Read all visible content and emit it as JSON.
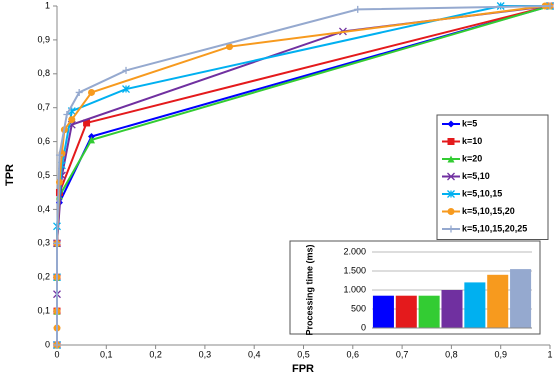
{
  "chart_data": [
    {
      "type": "line",
      "xlabel": "FPR",
      "ylabel": "TPR",
      "xlim": [
        0,
        1
      ],
      "ylim": [
        0,
        1
      ],
      "xticks": [
        0,
        {
          "value": 0.1,
          "label": "0,1"
        },
        {
          "value": 0.2,
          "label": "0,2"
        },
        {
          "value": 0.3,
          "label": "0,3"
        },
        {
          "value": 0.4,
          "label": "0,4"
        },
        {
          "value": 0.5,
          "label": "0,5"
        },
        {
          "value": 0.6,
          "label": "0,6"
        },
        {
          "value": 0.7,
          "label": "0,7"
        },
        {
          "value": 0.8,
          "label": "0,8"
        },
        {
          "value": 0.9,
          "label": "0,9"
        },
        1
      ],
      "yticks": [
        0,
        {
          "value": 0.1,
          "label": "0,1"
        },
        {
          "value": 0.2,
          "label": "0,2"
        },
        {
          "value": 0.3,
          "label": "0,3"
        },
        {
          "value": 0.4,
          "label": "0,4"
        },
        {
          "value": 0.5,
          "label": "0,5"
        },
        {
          "value": 0.6,
          "label": "0,6"
        },
        {
          "value": 0.7,
          "label": "0,7"
        },
        {
          "value": 0.8,
          "label": "0,8"
        },
        {
          "value": 0.9,
          "label": "0,9"
        },
        1
      ],
      "legend": "right",
      "series": [
        {
          "name": "k=5",
          "color": "#0000ff",
          "marker": "diamond",
          "x": [
            0,
            0,
            0,
            0,
            0.005,
            0.07,
            1
          ],
          "values": [
            0,
            0.1,
            0.2,
            0.3,
            0.42,
            0.615,
            1
          ]
        },
        {
          "name": "k=10",
          "color": "#e41a1c",
          "marker": "square",
          "x": [
            0,
            0,
            0,
            0,
            0.005,
            0.06,
            1
          ],
          "values": [
            0,
            0.1,
            0.2,
            0.3,
            0.45,
            0.655,
            1
          ]
        },
        {
          "name": "k=20",
          "color": "#33cc33",
          "marker": "triangle",
          "x": [
            0,
            0,
            0,
            0,
            0.005,
            0.07,
            1
          ],
          "values": [
            0,
            0.1,
            0.2,
            0.3,
            0.44,
            0.605,
            1
          ]
        },
        {
          "name": "k=5,10",
          "color": "#7030a0",
          "marker": "x",
          "x": [
            0,
            0,
            0,
            0.01,
            0.03,
            0.58,
            1
          ],
          "values": [
            0,
            0.15,
            0.3,
            0.5,
            0.65,
            0.925,
            1
          ]
        },
        {
          "name": "k=5,10,15",
          "color": "#00b0f0",
          "marker": "star",
          "x": [
            0,
            0,
            0,
            0.01,
            0.03,
            0.14,
            0.9,
            1
          ],
          "values": [
            0,
            0.2,
            0.35,
            0.53,
            0.69,
            0.755,
            1,
            1
          ]
        },
        {
          "name": "k=5,10,15,20",
          "color": "#f79a1e",
          "marker": "circle",
          "x": [
            0,
            0,
            0,
            0,
            0,
            0.005,
            0.01,
            0.015,
            0.03,
            0.07,
            0.35,
            0.99,
            1
          ],
          "values": [
            0,
            0.05,
            0.1,
            0.2,
            0.3,
            0.48,
            0.565,
            0.635,
            0.665,
            0.745,
            0.88,
            1,
            1
          ]
        },
        {
          "name": "k=5,10,15,20,25",
          "color": "#95a9cf",
          "marker": "plus",
          "x": [
            0,
            0,
            0.005,
            0.02,
            0.045,
            0.14,
            0.61,
            1
          ],
          "values": [
            0,
            0.3,
            0.56,
            0.68,
            0.745,
            0.81,
            0.99,
            1
          ]
        }
      ]
    },
    {
      "type": "bar",
      "ylabel": "Processing time (ms)",
      "categories": [
        null,
        null,
        null,
        null,
        null,
        null,
        null
      ],
      "values": [
        850,
        850,
        850,
        1000,
        1200,
        1400,
        1550
      ],
      "colors": [
        "#0000ff",
        "#e41a1c",
        "#33cc33",
        "#7030a0",
        "#00b0f0",
        "#f79a1e",
        "#95a9cf"
      ],
      "ylim": [
        0,
        2000
      ],
      "yticks": [
        0,
        500,
        {
          "value": 1000,
          "label": "1.000"
        },
        {
          "value": 1500,
          "label": "1.500"
        },
        {
          "value": 2000,
          "label": "2.000"
        }
      ],
      "grid": true
    }
  ]
}
